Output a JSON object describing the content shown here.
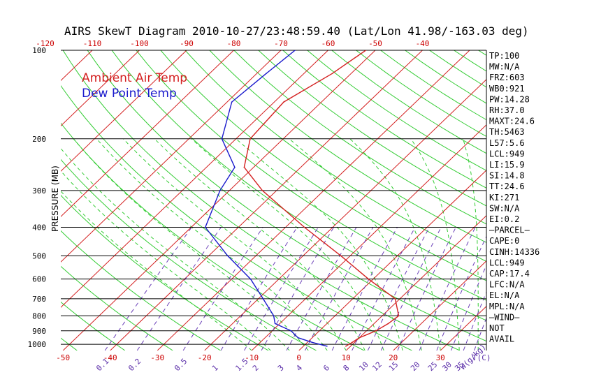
{
  "chart_data": {
    "type": "line",
    "title": "AIRS SkewT Diagram 2010-10-27/23:48:59.40 (Lat/Lon 41.98/-163.03 deg)",
    "ylabel": "PRESSURE (MB)",
    "xlabel": "T(C)",
    "mixing_ratio_label": "W(g/kg)",
    "ylim_hpa": [
      1050,
      100
    ],
    "pressure_ticks": [
      100,
      200,
      300,
      400,
      500,
      600,
      700,
      800,
      900,
      1000
    ],
    "bottom_temp_ticks": [
      -50,
      -40,
      -30,
      -20,
      -10,
      0,
      10,
      20,
      30
    ],
    "top_temp_ticks": [
      -120,
      -110,
      -100,
      -90,
      -80,
      -70,
      -60,
      -50,
      -40
    ],
    "mixing_ratio_ticks": [
      "0.1",
      "0.2",
      "0.5",
      "1",
      "1.5",
      "2",
      "3",
      "4",
      "6",
      "8",
      "10",
      "12",
      "15",
      "20",
      "25",
      "30",
      "35",
      "40"
    ],
    "legend": [
      {
        "name": "Ambient Air Temp",
        "color": "#d42020"
      },
      {
        "name": "Dew Point Temp",
        "color": "#1a1acc"
      }
    ],
    "series": [
      {
        "name": "Ambient Air Temp",
        "color": "#d42020",
        "points": [
          {
            "p": 1015,
            "t": 9
          },
          {
            "p": 985,
            "t": 9.5
          },
          {
            "p": 950,
            "t": 10
          },
          {
            "p": 925,
            "t": 11
          },
          {
            "p": 900,
            "t": 12
          },
          {
            "p": 850,
            "t": 13
          },
          {
            "p": 800,
            "t": 13.5
          },
          {
            "p": 700,
            "t": 9
          },
          {
            "p": 600,
            "t": -1
          },
          {
            "p": 500,
            "t": -12
          },
          {
            "p": 400,
            "t": -26
          },
          {
            "p": 300,
            "t": -43
          },
          {
            "p": 250,
            "t": -52
          },
          {
            "p": 200,
            "t": -57
          },
          {
            "p": 150,
            "t": -58
          },
          {
            "p": 120,
            "t": -54
          },
          {
            "p": 100,
            "t": -52
          }
        ]
      },
      {
        "name": "Dew Point Temp",
        "color": "#1a1acc",
        "points": [
          {
            "p": 1015,
            "t": 5
          },
          {
            "p": 985,
            "t": 1
          },
          {
            "p": 950,
            "t": -3
          },
          {
            "p": 900,
            "t": -6
          },
          {
            "p": 850,
            "t": -11
          },
          {
            "p": 800,
            "t": -13
          },
          {
            "p": 700,
            "t": -19
          },
          {
            "p": 600,
            "t": -26
          },
          {
            "p": 500,
            "t": -36
          },
          {
            "p": 400,
            "t": -47
          },
          {
            "p": 300,
            "t": -52
          },
          {
            "p": 250,
            "t": -54
          },
          {
            "p": 200,
            "t": -63
          },
          {
            "p": 150,
            "t": -69
          },
          {
            "p": 120,
            "t": -68
          },
          {
            "p": 100,
            "t": -67
          }
        ]
      }
    ],
    "stats": [
      "TP:100",
      "MW:N/A",
      "FRZ:603",
      "WB0:921",
      "PW:14.28",
      "RH:37.0",
      "MAXT:24.6",
      "TH:5463",
      "L57:5.6",
      "LCL:949",
      "LI:15.9",
      "SI:14.8",
      "TT:24.6",
      "KI:271",
      "SW:N/A",
      "EI:0.2",
      "—PARCEL—",
      "CAPE:0",
      "CINH:14336",
      "LCL:949",
      "CAP:17.4",
      "LFC:N/A",
      "EL:N/A",
      "MPL:N/A",
      "—WIND—",
      "NOT",
      "AVAIL"
    ]
  }
}
